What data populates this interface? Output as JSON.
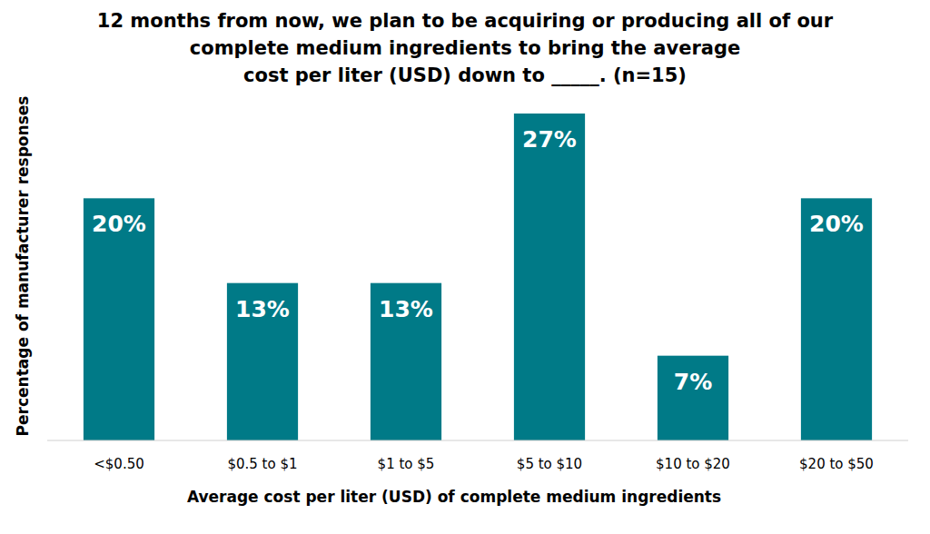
{
  "chart_data": {
    "type": "bar",
    "title": "12 months from now, we plan to be acquiring or producing all of our\ncomplete medium ingredients to bring the average\ncost per liter (USD) down to _____. (n=15)",
    "x_label": "Average cost per liter (USD) of complete medium ingredients",
    "y_label": "Percentage of manufacturer responses",
    "categories": [
      "<$0.50",
      "$0.5 to $1",
      "$1 to $5",
      "$5 to $10",
      "$10 to $20",
      "$20 to $50"
    ],
    "values": [
      20,
      13,
      13,
      27,
      7,
      20
    ],
    "value_labels": [
      "20%",
      "13%",
      "13%",
      "27%",
      "7%",
      "20%"
    ],
    "color": "#007a87",
    "ylim": [
      0,
      27
    ],
    "grid": false,
    "data_labels": true,
    "tick_labels": "x"
  }
}
